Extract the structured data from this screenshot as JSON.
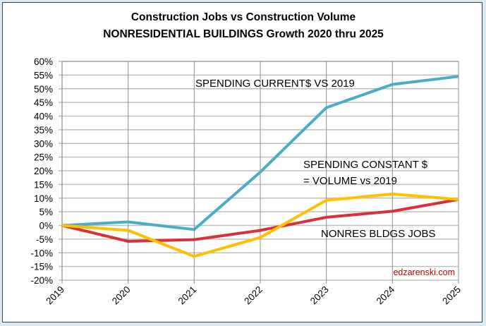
{
  "chart_data": {
    "type": "line",
    "title": [
      "Construction Jobs vs Construction Volume",
      "NONRESIDENTIAL BUILDINGS Growth 2020 thru 2025"
    ],
    "xlabel": "",
    "ylabel": "",
    "x": [
      "2019",
      "2020",
      "2021",
      "2022",
      "2023",
      "2024",
      "2025"
    ],
    "ylim": [
      -20,
      60
    ],
    "ytick_step": 5,
    "ytick_format": "percent",
    "grid": true,
    "legend": "none (inline annotations)",
    "series": [
      {
        "name": "SPENDING CURRENT$ VS 2019",
        "color": "#4bacc6",
        "values": [
          0,
          1.3,
          -1.5,
          19.5,
          43.1,
          51.6,
          54.5
        ]
      },
      {
        "name": "SPENDING CONSTANT $ = VOLUME vs 2019",
        "color": "#ffc000",
        "values": [
          0,
          -1.8,
          -11.3,
          -4.4,
          9.2,
          11.5,
          9.5
        ]
      },
      {
        "name": "NONRES BLDGS JOBS",
        "color": "#d9313a",
        "values": [
          0,
          -5.8,
          -5.2,
          -1.8,
          3.0,
          5.2,
          9.5
        ]
      }
    ],
    "annotations": [
      {
        "text": "SPENDING CURRENT$ VS 2019",
        "series": 0
      },
      {
        "text": "SPENDING CONSTANT $",
        "series": 1
      },
      {
        "text": "= VOLUME vs 2019",
        "series": 1
      },
      {
        "text": "NONRES BLDGS JOBS",
        "series": 2
      }
    ],
    "watermark": {
      "text": "edzarenski.com",
      "color": "#c00000"
    }
  }
}
